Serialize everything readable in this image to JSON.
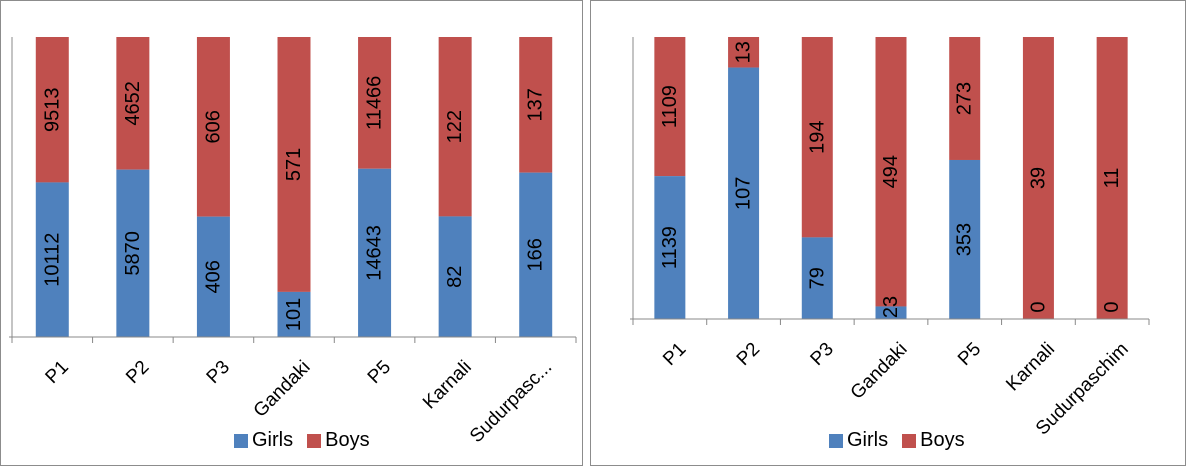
{
  "colors": {
    "girls": "#4f81bd",
    "boys": "#c0504d",
    "axis": "#888888",
    "border": "#8c8c8c"
  },
  "chart_data": [
    {
      "type": "bar",
      "stacked": "percent",
      "categories": [
        "P1",
        "P2",
        "P3",
        "Gandaki",
        "P5",
        "Karnali",
        "Sudurpasc..."
      ],
      "series": [
        {
          "name": "Girls",
          "values": [
            10112,
            5870,
            406,
            101,
            14643,
            82,
            166
          ]
        },
        {
          "name": "Boys",
          "values": [
            9513,
            4652,
            606,
            571,
            11466,
            122,
            137
          ]
        }
      ],
      "legend": "bottom",
      "grid": false
    },
    {
      "type": "bar",
      "stacked": "percent",
      "categories": [
        "P1",
        "P2",
        "P3",
        "Gandaki",
        "P5",
        "Karnali",
        "Sudurpaschim"
      ],
      "series": [
        {
          "name": "Girls",
          "values": [
            1139,
            107,
            79,
            23,
            353,
            0,
            0
          ]
        },
        {
          "name": "Boys",
          "values": [
            1109,
            13,
            194,
            494,
            273,
            39,
            11
          ]
        }
      ],
      "legend": "bottom",
      "grid": false
    }
  ]
}
